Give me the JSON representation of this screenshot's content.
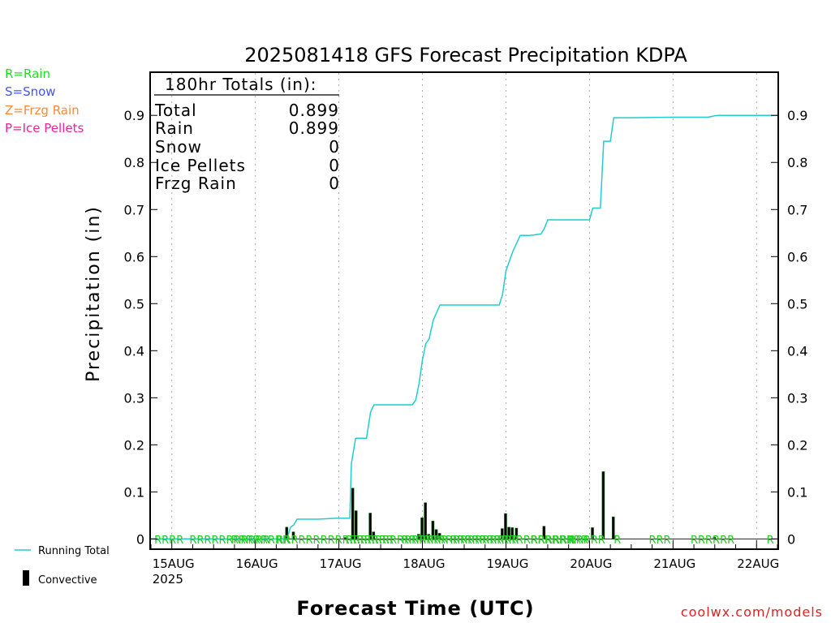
{
  "chart_data": {
    "type": "bar",
    "title": "2025081418 GFS Forecast Precipitation KDPA",
    "xlabel": "Forecast Time (UTC)",
    "ylabel": "Precipitation (in)",
    "watermark": "coolwx.com/models",
    "ylim": [
      -0.02,
      0.99
    ],
    "yticks": [
      0,
      0.1,
      0.2,
      0.3,
      0.4,
      0.5,
      0.6,
      0.7,
      0.8,
      0.9
    ],
    "xlim_days": [
      14.75,
      22.25
    ],
    "x_ticks": [
      {
        "day": 15,
        "label": "15AUG",
        "sub": "2025"
      },
      {
        "day": 16,
        "label": "16AUG",
        "sub": ""
      },
      {
        "day": 17,
        "label": "17AUG",
        "sub": ""
      },
      {
        "day": 18,
        "label": "18AUG",
        "sub": ""
      },
      {
        "day": 19,
        "label": "19AUG",
        "sub": ""
      },
      {
        "day": 20,
        "label": "20AUG",
        "sub": ""
      },
      {
        "day": 21,
        "label": "21AUG",
        "sub": ""
      },
      {
        "day": 22,
        "label": "22AUG",
        "sub": ""
      }
    ],
    "legend_types": [
      {
        "text": "R=Rain",
        "color": "#22dd22"
      },
      {
        "text": "S=Snow",
        "color": "#4455ee"
      },
      {
        "text": "Z=Frzg Rain",
        "color": "#ff8833"
      },
      {
        "text": "P=Ice Pellets",
        "color": "#ee2299"
      }
    ],
    "legend_series": [
      {
        "text": "Running Total",
        "color": "#22cccc"
      },
      {
        "text": "Convective",
        "color": "#000000"
      }
    ],
    "totals_box": {
      "header": "180hr Totals (in):",
      "rows": [
        {
          "label": "Total",
          "value": "0.899"
        },
        {
          "label": "Rain",
          "value": "0.899"
        },
        {
          "label": "Snow",
          "value": "0"
        },
        {
          "label": "Ice Pellets",
          "value": "0"
        },
        {
          "label": "Frzg Rain",
          "value": "0"
        }
      ]
    },
    "running_total": [
      [
        14.75,
        0
      ],
      [
        16.38,
        0
      ],
      [
        16.42,
        0.025
      ],
      [
        16.46,
        0.03
      ],
      [
        16.5,
        0.042
      ],
      [
        16.75,
        0.042
      ],
      [
        16.96,
        0.044
      ],
      [
        17.13,
        0.044
      ],
      [
        17.15,
        0.16
      ],
      [
        17.2,
        0.214
      ],
      [
        17.33,
        0.214
      ],
      [
        17.38,
        0.27
      ],
      [
        17.42,
        0.285
      ],
      [
        17.75,
        0.285
      ],
      [
        17.88,
        0.285
      ],
      [
        17.92,
        0.295
      ],
      [
        17.96,
        0.33
      ],
      [
        18.0,
        0.38
      ],
      [
        18.04,
        0.415
      ],
      [
        18.08,
        0.425
      ],
      [
        18.13,
        0.465
      ],
      [
        18.21,
        0.497
      ],
      [
        18.5,
        0.497
      ],
      [
        18.92,
        0.497
      ],
      [
        18.96,
        0.52
      ],
      [
        19.0,
        0.57
      ],
      [
        19.08,
        0.61
      ],
      [
        19.17,
        0.645
      ],
      [
        19.29,
        0.645
      ],
      [
        19.42,
        0.648
      ],
      [
        19.46,
        0.66
      ],
      [
        19.5,
        0.678
      ],
      [
        19.75,
        0.678
      ],
      [
        20.0,
        0.678
      ],
      [
        20.04,
        0.703
      ],
      [
        20.13,
        0.703
      ],
      [
        20.17,
        0.845
      ],
      [
        20.25,
        0.845
      ],
      [
        20.29,
        0.895
      ],
      [
        20.5,
        0.895
      ],
      [
        21.0,
        0.896
      ],
      [
        21.38,
        0.896
      ],
      [
        21.42,
        0.896
      ],
      [
        21.5,
        0.899
      ],
      [
        21.54,
        0.9
      ],
      [
        22.25,
        0.9
      ]
    ],
    "precip_bars": [
      {
        "day": 16.38,
        "value": 0.025
      },
      {
        "day": 16.46,
        "value": 0.015
      },
      {
        "day": 17.08,
        "value": 0.003
      },
      {
        "day": 17.17,
        "value": 0.108
      },
      {
        "day": 17.21,
        "value": 0.06
      },
      {
        "day": 17.38,
        "value": 0.055
      },
      {
        "day": 17.42,
        "value": 0.015
      },
      {
        "day": 17.96,
        "value": 0.01
      },
      {
        "day": 18.0,
        "value": 0.045
      },
      {
        "day": 18.04,
        "value": 0.077
      },
      {
        "day": 18.08,
        "value": 0.01
      },
      {
        "day": 18.13,
        "value": 0.038
      },
      {
        "day": 18.17,
        "value": 0.02
      },
      {
        "day": 18.21,
        "value": 0.012
      },
      {
        "day": 18.96,
        "value": 0.022
      },
      {
        "day": 19.0,
        "value": 0.054
      },
      {
        "day": 19.04,
        "value": 0.025
      },
      {
        "day": 19.08,
        "value": 0.024
      },
      {
        "day": 19.13,
        "value": 0.023
      },
      {
        "day": 19.46,
        "value": 0.027
      },
      {
        "day": 20.04,
        "value": 0.024
      },
      {
        "day": 20.17,
        "value": 0.143
      },
      {
        "day": 20.29,
        "value": 0.047
      },
      {
        "day": 21.5,
        "value": 0.004
      }
    ],
    "type_markers": [
      {
        "day": 14.79,
        "text": "RRRR"
      },
      {
        "day": 15.21,
        "text": "RRRRRRRRRRR"
      },
      {
        "day": 15.71,
        "text": "RRRRRRRR"
      },
      {
        "day": 16.25,
        "text": "RRRRRRRRRRRRRRRR"
      },
      {
        "day": 17.08,
        "text": "RRRRRRRRRRRRRR"
      },
      {
        "day": 17.75,
        "text": "RRRRRRRRRRRRRRRR"
      },
      {
        "day": 18.33,
        "text": "RRRRRRRRRRRRRRRRR"
      },
      {
        "day": 19.29,
        "text": "RR"
      },
      {
        "day": 19.46,
        "text": "RRRRRR"
      },
      {
        "day": 19.75,
        "text": "RRRRR"
      },
      {
        "day": 20.29,
        "text": "R"
      },
      {
        "day": 20.71,
        "text": "RRR"
      },
      {
        "day": 21.21,
        "text": "RRRRRR"
      },
      {
        "day": 22.12,
        "text": "R"
      }
    ]
  }
}
